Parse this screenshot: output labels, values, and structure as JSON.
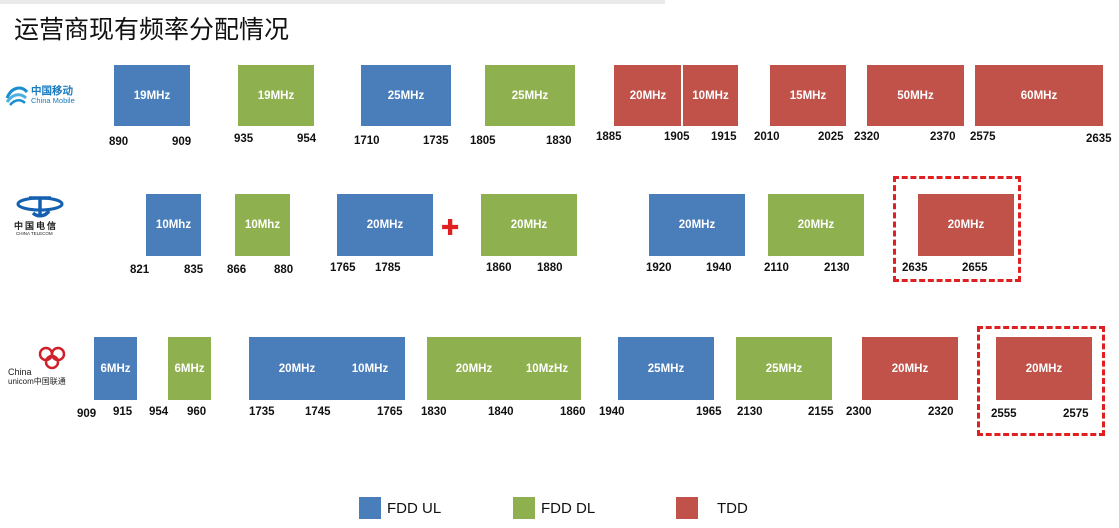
{
  "title": "运营商现有频率分配情况",
  "colors": {
    "fdd_ul": "#4a7ebb",
    "fdd_dl": "#8fb04f",
    "tdd": "#c0524a",
    "highlight": "#e02020"
  },
  "operators": {
    "mobile": {
      "logo_cn": "中国移动",
      "logo_en": "China Mobile",
      "blocks": [
        "19MHz",
        "19MHz",
        "25MHz",
        "25MHz",
        "20MHz",
        "10MHz",
        "15MHz",
        "50MHz",
        "60MHz"
      ],
      "ticks": [
        "890",
        "909",
        "935",
        "954",
        "1710",
        "1735",
        "1805",
        "1830",
        "1885",
        "1905",
        "1915",
        "2010",
        "2025",
        "2320",
        "2370",
        "2575",
        "2635"
      ]
    },
    "telecom": {
      "logo_cn": "中国电信",
      "logo_en": "CHINA TELECOM",
      "blocks": [
        "10Mhz",
        "10Mhz",
        "20MHz",
        "20MHz",
        "20MHz",
        "20MHz",
        "20MHz"
      ],
      "ticks": [
        "821",
        "835",
        "866",
        "880",
        "1765",
        "1785",
        "1860",
        "1880",
        "1920",
        "1940",
        "2110",
        "2130",
        "2635",
        "2655"
      ]
    },
    "unicom": {
      "logo_en1": "China",
      "logo_en2": "unicom中国联通",
      "blocks": [
        "6MHz",
        "6MHz",
        "20MHz",
        "10MHz",
        "20MHz",
        "10MzHz",
        "25MHz",
        "25MHz",
        "20MHz",
        "20MHz"
      ],
      "ticks": [
        "909",
        "915",
        "954",
        "960",
        "1735",
        "1745",
        "1765",
        "1830",
        "1840",
        "1860",
        "1940",
        "1965",
        "2130",
        "2155",
        "2300",
        "2320",
        "2555",
        "2575"
      ]
    }
  },
  "legend": [
    "FDD UL",
    "FDD DL",
    "TDD"
  ]
}
